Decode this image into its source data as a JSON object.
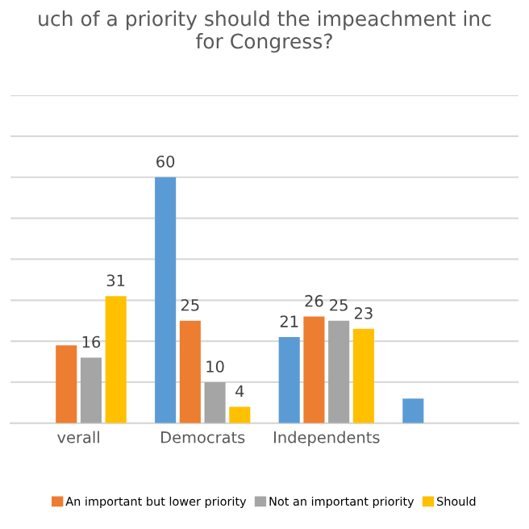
{
  "chart_data": {
    "type": "bar",
    "title": "uch of a priority should the impeachment inc\nfor Congress?",
    "categories": [
      "verall",
      "Democrats",
      "Independents",
      null
    ],
    "series": [
      {
        "color": "#5b9bd5",
        "values": [
          null,
          60,
          21,
          6
        ],
        "value_labels": [
          null,
          "60",
          "21",
          null
        ]
      },
      {
        "name": "An important but lower priority",
        "color": "#ed7d31",
        "values": [
          19,
          25,
          26,
          null
        ],
        "value_labels": [
          null,
          "25",
          "26",
          null
        ]
      },
      {
        "name": "Not an important priority",
        "color": "#a5a5a5",
        "values": [
          16,
          10,
          25,
          null
        ],
        "value_labels": [
          "16",
          "10",
          "25",
          null
        ]
      },
      {
        "name": "Should",
        "color": "#ffc000",
        "values": [
          31,
          4,
          23,
          null
        ],
        "value_labels": [
          "31",
          "4",
          "23",
          null
        ]
      }
    ],
    "ylim": [
      0,
      80
    ],
    "yticks": [
      {
        "value": 0,
        "label": null
      },
      {
        "value": 10,
        "label": null
      },
      {
        "value": 20,
        "label": null
      },
      {
        "value": 30,
        "label": null
      },
      {
        "value": 40,
        "label": null
      },
      {
        "value": 50,
        "label": null
      },
      {
        "value": 60,
        "label": null
      },
      {
        "value": 70,
        "label": null
      },
      {
        "value": 80,
        "label": null
      }
    ],
    "grid": "y",
    "legend": "bottom",
    "tick_labels": "x"
  }
}
